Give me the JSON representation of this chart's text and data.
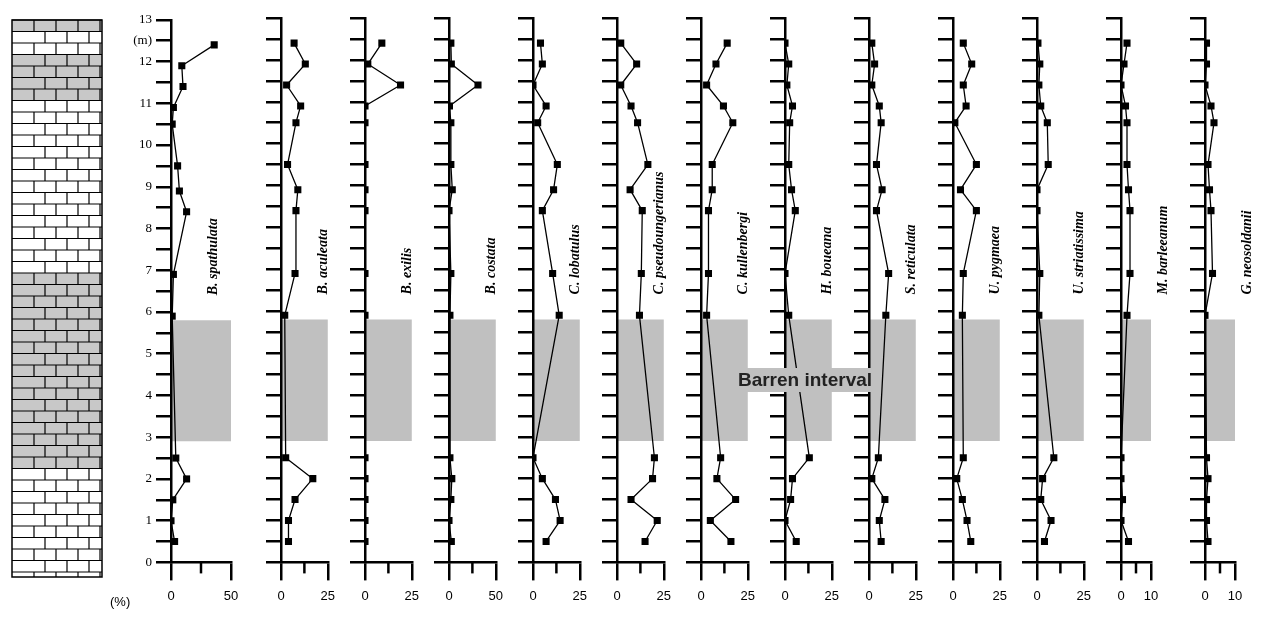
{
  "chart_data": [
    {
      "type": "line",
      "xlabel": "(%)",
      "xlim": [
        0,
        50
      ],
      "xticks": [
        0,
        50
      ],
      "ylim": [
        0,
        13
      ],
      "yticks": [
        0,
        {
          "value": 0.5,
          "label": null
        },
        1,
        {
          "value": 1.5,
          "label": null
        },
        2,
        {
          "value": 2.5,
          "label": null
        },
        3,
        {
          "value": 3.5,
          "label": null
        },
        4,
        {
          "value": 4.5,
          "label": null
        },
        5,
        {
          "value": 5.5,
          "label": null
        },
        6,
        {
          "value": 6.5,
          "label": null
        },
        7,
        {
          "value": 7.5,
          "label": null
        },
        8,
        {
          "value": 8.5,
          "label": null
        },
        9,
        {
          "value": 9.5,
          "label": null
        },
        10,
        {
          "value": 10.5,
          "label": null
        },
        11,
        {
          "value": 11.5,
          "label": null
        },
        12,
        {
          "value": 12.5,
          "label": "(m)"
        },
        13
      ],
      "grid": false,
      "marker": "square",
      "line_style": "solid",
      "bands": [
        {
          "axis": "y",
          "from": 2.9,
          "to": 5.8,
          "color": "#c0c0c0"
        }
      ],
      "series": [
        {
          "name": "B. spathulata",
          "color": "#000000",
          "x": [
            3,
            0,
            1.5,
            13,
            4,
            1,
            2,
            13,
            7,
            5.5,
            1,
            2,
            10,
            9,
            36
          ],
          "values": [
            0.5,
            1,
            1.5,
            2,
            2.5,
            5.9,
            6.9,
            8.4,
            8.9,
            9.5,
            10.5,
            10.9,
            11.4,
            11.9,
            12.4
          ]
        }
      ]
    },
    {
      "type": "line",
      "tick_labels": "x",
      "xlim": [
        0,
        25
      ],
      "xticks": [
        0,
        25
      ],
      "ylim": [
        0,
        13
      ],
      "yticks": [
        0,
        {
          "value": 0.5,
          "label": null
        },
        1,
        {
          "value": 1.5,
          "label": null
        },
        2,
        {
          "value": 2.5,
          "label": null
        },
        3,
        {
          "value": 3.5,
          "label": null
        },
        4,
        {
          "value": 4.5,
          "label": null
        },
        5,
        {
          "value": 5.5,
          "label": null
        },
        6,
        {
          "value": 6.5,
          "label": null
        },
        7,
        {
          "value": 7.5,
          "label": null
        },
        8,
        {
          "value": 8.5,
          "label": null
        },
        9,
        {
          "value": 9.5,
          "label": null
        },
        10,
        {
          "value": 10.5,
          "label": null
        },
        11,
        {
          "value": 11.5,
          "label": null
        },
        12,
        {
          "value": 12.5,
          "label": null
        },
        13
      ],
      "grid": false,
      "marker": "square",
      "line_style": "solid",
      "bands": [
        {
          "axis": "y",
          "from": 2.9,
          "to": 5.8,
          "color": "#c0c0c0"
        }
      ],
      "series": [
        {
          "name": "B. aculeata",
          "color": "#000000",
          "x": [
            4,
            4,
            7.5,
            17,
            2.5,
            2,
            7.5,
            8,
            9,
            3.5,
            8,
            10.5,
            3,
            13,
            7
          ],
          "values": [
            0.5,
            1,
            1.5,
            2,
            2.5,
            5.9,
            6.9,
            8.4,
            8.9,
            9.5,
            10.5,
            10.9,
            11.4,
            11.9,
            12.4
          ]
        }
      ]
    },
    {
      "type": "line",
      "tick_labels": "x",
      "xlim": [
        0,
        25
      ],
      "xticks": [
        0,
        25
      ],
      "ylim": [
        0,
        13
      ],
      "yticks": [
        0,
        {
          "value": 0.5,
          "label": null
        },
        1,
        {
          "value": 1.5,
          "label": null
        },
        2,
        {
          "value": 2.5,
          "label": null
        },
        3,
        {
          "value": 3.5,
          "label": null
        },
        4,
        {
          "value": 4.5,
          "label": null
        },
        5,
        {
          "value": 5.5,
          "label": null
        },
        6,
        {
          "value": 6.5,
          "label": null
        },
        7,
        {
          "value": 7.5,
          "label": null
        },
        8,
        {
          "value": 8.5,
          "label": null
        },
        9,
        {
          "value": 9.5,
          "label": null
        },
        10,
        {
          "value": 10.5,
          "label": null
        },
        11,
        {
          "value": 11.5,
          "label": null
        },
        12,
        {
          "value": 12.5,
          "label": null
        },
        13
      ],
      "grid": false,
      "marker": "square",
      "line_style": "solid",
      "bands": [
        {
          "axis": "y",
          "from": 2.9,
          "to": 5.8,
          "color": "#c0c0c0"
        }
      ],
      "series": [
        {
          "name": "B. exilis",
          "color": "#000000",
          "x": [
            0,
            0,
            0,
            0,
            0,
            0,
            0,
            0,
            0,
            0,
            0,
            0,
            19,
            1.5,
            9
          ],
          "values": [
            0.5,
            1,
            1.5,
            2,
            2.5,
            5.9,
            6.9,
            8.4,
            8.9,
            9.5,
            10.5,
            10.9,
            11.4,
            11.9,
            12.4
          ]
        }
      ]
    },
    {
      "type": "line",
      "tick_labels": "x",
      "xlim": [
        0,
        50
      ],
      "xticks": [
        0,
        50
      ],
      "ylim": [
        0,
        13
      ],
      "yticks": [
        0,
        {
          "value": 0.5,
          "label": null
        },
        1,
        {
          "value": 1.5,
          "label": null
        },
        2,
        {
          "value": 2.5,
          "label": null
        },
        3,
        {
          "value": 3.5,
          "label": null
        },
        4,
        {
          "value": 4.5,
          "label": null
        },
        5,
        {
          "value": 5.5,
          "label": null
        },
        6,
        {
          "value": 6.5,
          "label": null
        },
        7,
        {
          "value": 7.5,
          "label": null
        },
        8,
        {
          "value": 8.5,
          "label": null
        },
        9,
        {
          "value": 9.5,
          "label": null
        },
        10,
        {
          "value": 10.5,
          "label": null
        },
        11,
        {
          "value": 11.5,
          "label": null
        },
        12,
        {
          "value": 12.5,
          "label": null
        },
        13
      ],
      "grid": false,
      "marker": "square",
      "line_style": "solid",
      "bands": [
        {
          "axis": "y",
          "from": 2.9,
          "to": 5.8,
          "color": "#c0c0c0"
        }
      ],
      "series": [
        {
          "name": "B. costata",
          "color": "#000000",
          "x": [
            2.5,
            0,
            2,
            3,
            1,
            1,
            2,
            0,
            3.5,
            2,
            2,
            0.5,
            31,
            2.5,
            2
          ],
          "values": [
            0.5,
            1,
            1.5,
            2,
            2.5,
            5.9,
            6.9,
            8.4,
            8.9,
            9.5,
            10.5,
            10.9,
            11.4,
            11.9,
            12.4
          ]
        }
      ]
    },
    {
      "type": "line",
      "tick_labels": "x",
      "xlim": [
        0,
        25
      ],
      "xticks": [
        0,
        25
      ],
      "ylim": [
        0,
        13
      ],
      "yticks": [
        0,
        {
          "value": 0.5,
          "label": null
        },
        1,
        {
          "value": 1.5,
          "label": null
        },
        2,
        {
          "value": 2.5,
          "label": null
        },
        3,
        {
          "value": 3.5,
          "label": null
        },
        4,
        {
          "value": 4.5,
          "label": null
        },
        5,
        {
          "value": 5.5,
          "label": null
        },
        6,
        {
          "value": 6.5,
          "label": null
        },
        7,
        {
          "value": 7.5,
          "label": null
        },
        8,
        {
          "value": 8.5,
          "label": null
        },
        9,
        {
          "value": 9.5,
          "label": null
        },
        10,
        {
          "value": 10.5,
          "label": null
        },
        11,
        {
          "value": 11.5,
          "label": null
        },
        12,
        {
          "value": 12.5,
          "label": null
        },
        13
      ],
      "grid": false,
      "marker": "square",
      "line_style": "solid",
      "bands": [
        {
          "axis": "y",
          "from": 2.9,
          "to": 5.8,
          "color": "#c0c0c0"
        }
      ],
      "series": [
        {
          "name": "C. lobatulus",
          "color": "#000000",
          "x": [
            7,
            14.5,
            12,
            5,
            0,
            14,
            10.5,
            5,
            11,
            13,
            2.5,
            7,
            0,
            5,
            4
          ],
          "values": [
            0.5,
            1,
            1.5,
            2,
            2.5,
            5.9,
            6.9,
            8.4,
            8.9,
            9.5,
            10.5,
            10.9,
            11.4,
            11.9,
            12.4
          ]
        }
      ]
    },
    {
      "type": "line",
      "tick_labels": "x",
      "xlim": [
        0,
        25
      ],
      "xticks": [
        0,
        25
      ],
      "ylim": [
        0,
        13
      ],
      "yticks": [
        0,
        {
          "value": 0.5,
          "label": null
        },
        1,
        {
          "value": 1.5,
          "label": null
        },
        2,
        {
          "value": 2.5,
          "label": null
        },
        3,
        {
          "value": 3.5,
          "label": null
        },
        4,
        {
          "value": 4.5,
          "label": null
        },
        5,
        {
          "value": 5.5,
          "label": null
        },
        6,
        {
          "value": 6.5,
          "label": null
        },
        7,
        {
          "value": 7.5,
          "label": null
        },
        8,
        {
          "value": 8.5,
          "label": null
        },
        9,
        {
          "value": 9.5,
          "label": null
        },
        10,
        {
          "value": 10.5,
          "label": null
        },
        11,
        {
          "value": 11.5,
          "label": null
        },
        12,
        {
          "value": 12.5,
          "label": null
        },
        13
      ],
      "grid": false,
      "marker": "square",
      "line_style": "solid",
      "bands": [
        {
          "axis": "y",
          "from": 2.9,
          "to": 5.8,
          "color": "#c0c0c0"
        }
      ],
      "series": [
        {
          "name": "C. pseudoungerianus",
          "color": "#000000",
          "x": [
            15,
            21.5,
            7.5,
            19,
            20,
            12,
            13,
            13.5,
            7,
            16.5,
            11,
            7.5,
            2,
            10.5,
            2
          ],
          "values": [
            0.5,
            1,
            1.5,
            2,
            2.5,
            5.9,
            6.9,
            8.4,
            8.9,
            9.5,
            10.5,
            10.9,
            11.4,
            11.9,
            12.4
          ]
        }
      ]
    },
    {
      "type": "line",
      "tick_labels": "x",
      "xlim": [
        0,
        25
      ],
      "xticks": [
        0,
        25
      ],
      "ylim": [
        0,
        13
      ],
      "yticks": [
        0,
        {
          "value": 0.5,
          "label": null
        },
        1,
        {
          "value": 1.5,
          "label": null
        },
        2,
        {
          "value": 2.5,
          "label": null
        },
        3,
        {
          "value": 3.5,
          "label": null
        },
        4,
        {
          "value": 4.5,
          "label": null
        },
        5,
        {
          "value": 5.5,
          "label": null
        },
        6,
        {
          "value": 6.5,
          "label": null
        },
        7,
        {
          "value": 7.5,
          "label": null
        },
        8,
        {
          "value": 8.5,
          "label": null
        },
        9,
        {
          "value": 9.5,
          "label": null
        },
        10,
        {
          "value": 10.5,
          "label": null
        },
        11,
        {
          "value": 11.5,
          "label": null
        },
        12,
        {
          "value": 12.5,
          "label": null
        },
        13
      ],
      "grid": false,
      "marker": "square",
      "line_style": "solid",
      "bands": [
        {
          "axis": "y",
          "from": 2.9,
          "to": 5.8,
          "color": "#c0c0c0"
        }
      ],
      "series": [
        {
          "name": "C. kullenbergi",
          "color": "#000000",
          "x": [
            16,
            5,
            18.5,
            8.5,
            10.5,
            3,
            4,
            4,
            6,
            6,
            17,
            12,
            3,
            8,
            14
          ],
          "values": [
            0.5,
            1,
            1.5,
            2,
            2.5,
            5.9,
            6.9,
            8.4,
            8.9,
            9.5,
            10.5,
            10.9,
            11.4,
            11.9,
            12.4
          ]
        }
      ]
    },
    {
      "type": "line",
      "tick_labels": "x",
      "xlim": [
        0,
        25
      ],
      "xticks": [
        0,
        25
      ],
      "ylim": [
        0,
        13
      ],
      "yticks": [
        0,
        {
          "value": 0.5,
          "label": null
        },
        1,
        {
          "value": 1.5,
          "label": null
        },
        2,
        {
          "value": 2.5,
          "label": null
        },
        3,
        {
          "value": 3.5,
          "label": null
        },
        4,
        {
          "value": 4.5,
          "label": null
        },
        5,
        {
          "value": 5.5,
          "label": null
        },
        6,
        {
          "value": 6.5,
          "label": null
        },
        7,
        {
          "value": 7.5,
          "label": null
        },
        8,
        {
          "value": 8.5,
          "label": null
        },
        9,
        {
          "value": 9.5,
          "label": null
        },
        10,
        {
          "value": 10.5,
          "label": null
        },
        11,
        {
          "value": 11.5,
          "label": null
        },
        12,
        {
          "value": 12.5,
          "label": null
        },
        13
      ],
      "grid": false,
      "marker": "square",
      "line_style": "solid",
      "bands": [
        {
          "axis": "y",
          "from": 2.9,
          "to": 5.8,
          "color": "#c0c0c0",
          "label": "Barren interval"
        }
      ],
      "series": [
        {
          "name": "H. boueana",
          "color": "#000000",
          "x": [
            6,
            0,
            3,
            4,
            13,
            2,
            0,
            5.5,
            3.5,
            2,
            2.5,
            4,
            1,
            2,
            0
          ],
          "values": [
            0.5,
            1,
            1.5,
            2,
            2.5,
            5.9,
            6.9,
            8.4,
            8.9,
            9.5,
            10.5,
            10.9,
            11.4,
            11.9,
            12.4
          ]
        }
      ]
    },
    {
      "type": "line",
      "tick_labels": "x",
      "xlim": [
        0,
        25
      ],
      "xticks": [
        0,
        25
      ],
      "ylim": [
        0,
        13
      ],
      "yticks": [
        0,
        {
          "value": 0.5,
          "label": null
        },
        1,
        {
          "value": 1.5,
          "label": null
        },
        2,
        {
          "value": 2.5,
          "label": null
        },
        3,
        {
          "value": 3.5,
          "label": null
        },
        4,
        {
          "value": 4.5,
          "label": null
        },
        5,
        {
          "value": 5.5,
          "label": null
        },
        6,
        {
          "value": 6.5,
          "label": null
        },
        7,
        {
          "value": 7.5,
          "label": null
        },
        8,
        {
          "value": 8.5,
          "label": null
        },
        9,
        {
          "value": 9.5,
          "label": null
        },
        10,
        {
          "value": 10.5,
          "label": null
        },
        11,
        {
          "value": 11.5,
          "label": null
        },
        12,
        {
          "value": 12.5,
          "label": null
        },
        13
      ],
      "grid": false,
      "marker": "square",
      "line_style": "solid",
      "bands": [
        {
          "axis": "y",
          "from": 2.9,
          "to": 5.8,
          "color": "#c0c0c0"
        }
      ],
      "series": [
        {
          "name": "S. reticulata",
          "color": "#000000",
          "x": [
            6.5,
            5.5,
            8.5,
            1.5,
            5,
            9,
            10.5,
            4,
            7,
            4,
            6.5,
            5.5,
            1.5,
            3,
            1.5
          ],
          "values": [
            0.5,
            1,
            1.5,
            2,
            2.5,
            5.9,
            6.9,
            8.4,
            8.9,
            9.5,
            10.5,
            10.9,
            11.4,
            11.9,
            12.4
          ]
        }
      ]
    },
    {
      "type": "line",
      "tick_labels": "x",
      "xlim": [
        0,
        25
      ],
      "xticks": [
        0,
        25
      ],
      "ylim": [
        0,
        13
      ],
      "yticks": [
        0,
        {
          "value": 0.5,
          "label": null
        },
        1,
        {
          "value": 1.5,
          "label": null
        },
        2,
        {
          "value": 2.5,
          "label": null
        },
        3,
        {
          "value": 3.5,
          "label": null
        },
        4,
        {
          "value": 4.5,
          "label": null
        },
        5,
        {
          "value": 5.5,
          "label": null
        },
        6,
        {
          "value": 6.5,
          "label": null
        },
        7,
        {
          "value": 7.5,
          "label": null
        },
        8,
        {
          "value": 8.5,
          "label": null
        },
        9,
        {
          "value": 9.5,
          "label": null
        },
        10,
        {
          "value": 10.5,
          "label": null
        },
        11,
        {
          "value": 11.5,
          "label": null
        },
        12,
        {
          "value": 12.5,
          "label": null
        },
        13
      ],
      "grid": false,
      "marker": "square",
      "line_style": "solid",
      "bands": [
        {
          "axis": "y",
          "from": 2.9,
          "to": 5.8,
          "color": "#c0c0c0"
        }
      ],
      "series": [
        {
          "name": "U. pygmaea",
          "color": "#000000",
          "x": [
            9.5,
            7.5,
            5,
            2,
            5.5,
            5,
            5.5,
            12.5,
            4,
            12.5,
            1,
            7,
            5.5,
            10,
            5.5
          ],
          "values": [
            0.5,
            1,
            1.5,
            2,
            2.5,
            5.9,
            6.9,
            8.4,
            8.9,
            9.5,
            10.5,
            10.9,
            11.4,
            11.9,
            12.4
          ]
        }
      ]
    },
    {
      "type": "line",
      "tick_labels": "x",
      "xlim": [
        0,
        25
      ],
      "xticks": [
        0,
        25
      ],
      "ylim": [
        0,
        13
      ],
      "yticks": [
        0,
        {
          "value": 0.5,
          "label": null
        },
        1,
        {
          "value": 1.5,
          "label": null
        },
        2,
        {
          "value": 2.5,
          "label": null
        },
        3,
        {
          "value": 3.5,
          "label": null
        },
        4,
        {
          "value": 4.5,
          "label": null
        },
        5,
        {
          "value": 5.5,
          "label": null
        },
        6,
        {
          "value": 6.5,
          "label": null
        },
        7,
        {
          "value": 7.5,
          "label": null
        },
        8,
        {
          "value": 8.5,
          "label": null
        },
        9,
        {
          "value": 9.5,
          "label": null
        },
        10,
        {
          "value": 10.5,
          "label": null
        },
        11,
        {
          "value": 11.5,
          "label": null
        },
        12,
        {
          "value": 12.5,
          "label": null
        },
        13
      ],
      "grid": false,
      "marker": "square",
      "line_style": "solid",
      "bands": [
        {
          "axis": "y",
          "from": 2.9,
          "to": 5.8,
          "color": "#c0c0c0"
        }
      ],
      "series": [
        {
          "name": "U. striatissima",
          "color": "#000000",
          "x": [
            4,
            7.5,
            2,
            3,
            9,
            1,
            1.5,
            0,
            0,
            6,
            5.5,
            2,
            1,
            1.5,
            0.5
          ],
          "values": [
            0.5,
            1,
            1.5,
            2,
            2.5,
            5.9,
            6.9,
            8.4,
            8.9,
            9.5,
            10.5,
            10.9,
            11.4,
            11.9,
            12.4
          ]
        }
      ]
    },
    {
      "type": "line",
      "tick_labels": "x",
      "xlim": [
        0,
        10
      ],
      "xticks": [
        0,
        10
      ],
      "ylim": [
        0,
        13
      ],
      "yticks": [
        0,
        {
          "value": 0.5,
          "label": null
        },
        1,
        {
          "value": 1.5,
          "label": null
        },
        2,
        {
          "value": 2.5,
          "label": null
        },
        3,
        {
          "value": 3.5,
          "label": null
        },
        4,
        {
          "value": 4.5,
          "label": null
        },
        5,
        {
          "value": 5.5,
          "label": null
        },
        6,
        {
          "value": 6.5,
          "label": null
        },
        7,
        {
          "value": 7.5,
          "label": null
        },
        8,
        {
          "value": 8.5,
          "label": null
        },
        9,
        {
          "value": 9.5,
          "label": null
        },
        10,
        {
          "value": 10.5,
          "label": null
        },
        11,
        {
          "value": 11.5,
          "label": null
        },
        12,
        {
          "value": 12.5,
          "label": null
        },
        13
      ],
      "grid": false,
      "marker": "square",
      "line_style": "solid",
      "bands": [
        {
          "axis": "y",
          "from": 2.9,
          "to": 5.8,
          "color": "#c0c0c0"
        }
      ],
      "series": [
        {
          "name": "M. barleeanum",
          "color": "#000000",
          "x": [
            2.5,
            0,
            0.5,
            0,
            0,
            2,
            3,
            3,
            2.5,
            2,
            2,
            1.5,
            0,
            1,
            2
          ],
          "values": [
            0.5,
            1,
            1.5,
            2,
            2.5,
            5.9,
            6.9,
            8.4,
            8.9,
            9.5,
            10.5,
            10.9,
            11.4,
            11.9,
            12.4
          ]
        }
      ]
    },
    {
      "type": "line",
      "tick_labels": "x",
      "xlim": [
        0,
        10
      ],
      "xticks": [
        0,
        10
      ],
      "ylim": [
        0,
        13
      ],
      "yticks": [
        0,
        {
          "value": 0.5,
          "label": null
        },
        1,
        {
          "value": 1.5,
          "label": null
        },
        2,
        {
          "value": 2.5,
          "label": null
        },
        3,
        {
          "value": 3.5,
          "label": null
        },
        4,
        {
          "value": 4.5,
          "label": null
        },
        5,
        {
          "value": 5.5,
          "label": null
        },
        6,
        {
          "value": 6.5,
          "label": null
        },
        7,
        {
          "value": 7.5,
          "label": null
        },
        8,
        {
          "value": 8.5,
          "label": null
        },
        9,
        {
          "value": 9.5,
          "label": null
        },
        10,
        {
          "value": 10.5,
          "label": null
        },
        11,
        {
          "value": 11.5,
          "label": null
        },
        12,
        {
          "value": 12.5,
          "label": null
        },
        13
      ],
      "grid": false,
      "marker": "square",
      "line_style": "solid",
      "bands": [
        {
          "axis": "y",
          "from": 2.9,
          "to": 5.8,
          "color": "#c0c0c0"
        }
      ],
      "series": [
        {
          "name": "G. neosoldanii",
          "color": "#000000",
          "x": [
            1,
            0.5,
            0.5,
            1,
            0.5,
            0,
            2.5,
            2,
            1.5,
            1,
            3,
            2,
            0,
            0.5,
            0.5
          ],
          "values": [
            0.5,
            1,
            1.5,
            2,
            2.5,
            5.9,
            6.9,
            8.4,
            8.9,
            9.5,
            10.5,
            10.9,
            11.4,
            11.9,
            12.4
          ]
        }
      ]
    }
  ]
}
